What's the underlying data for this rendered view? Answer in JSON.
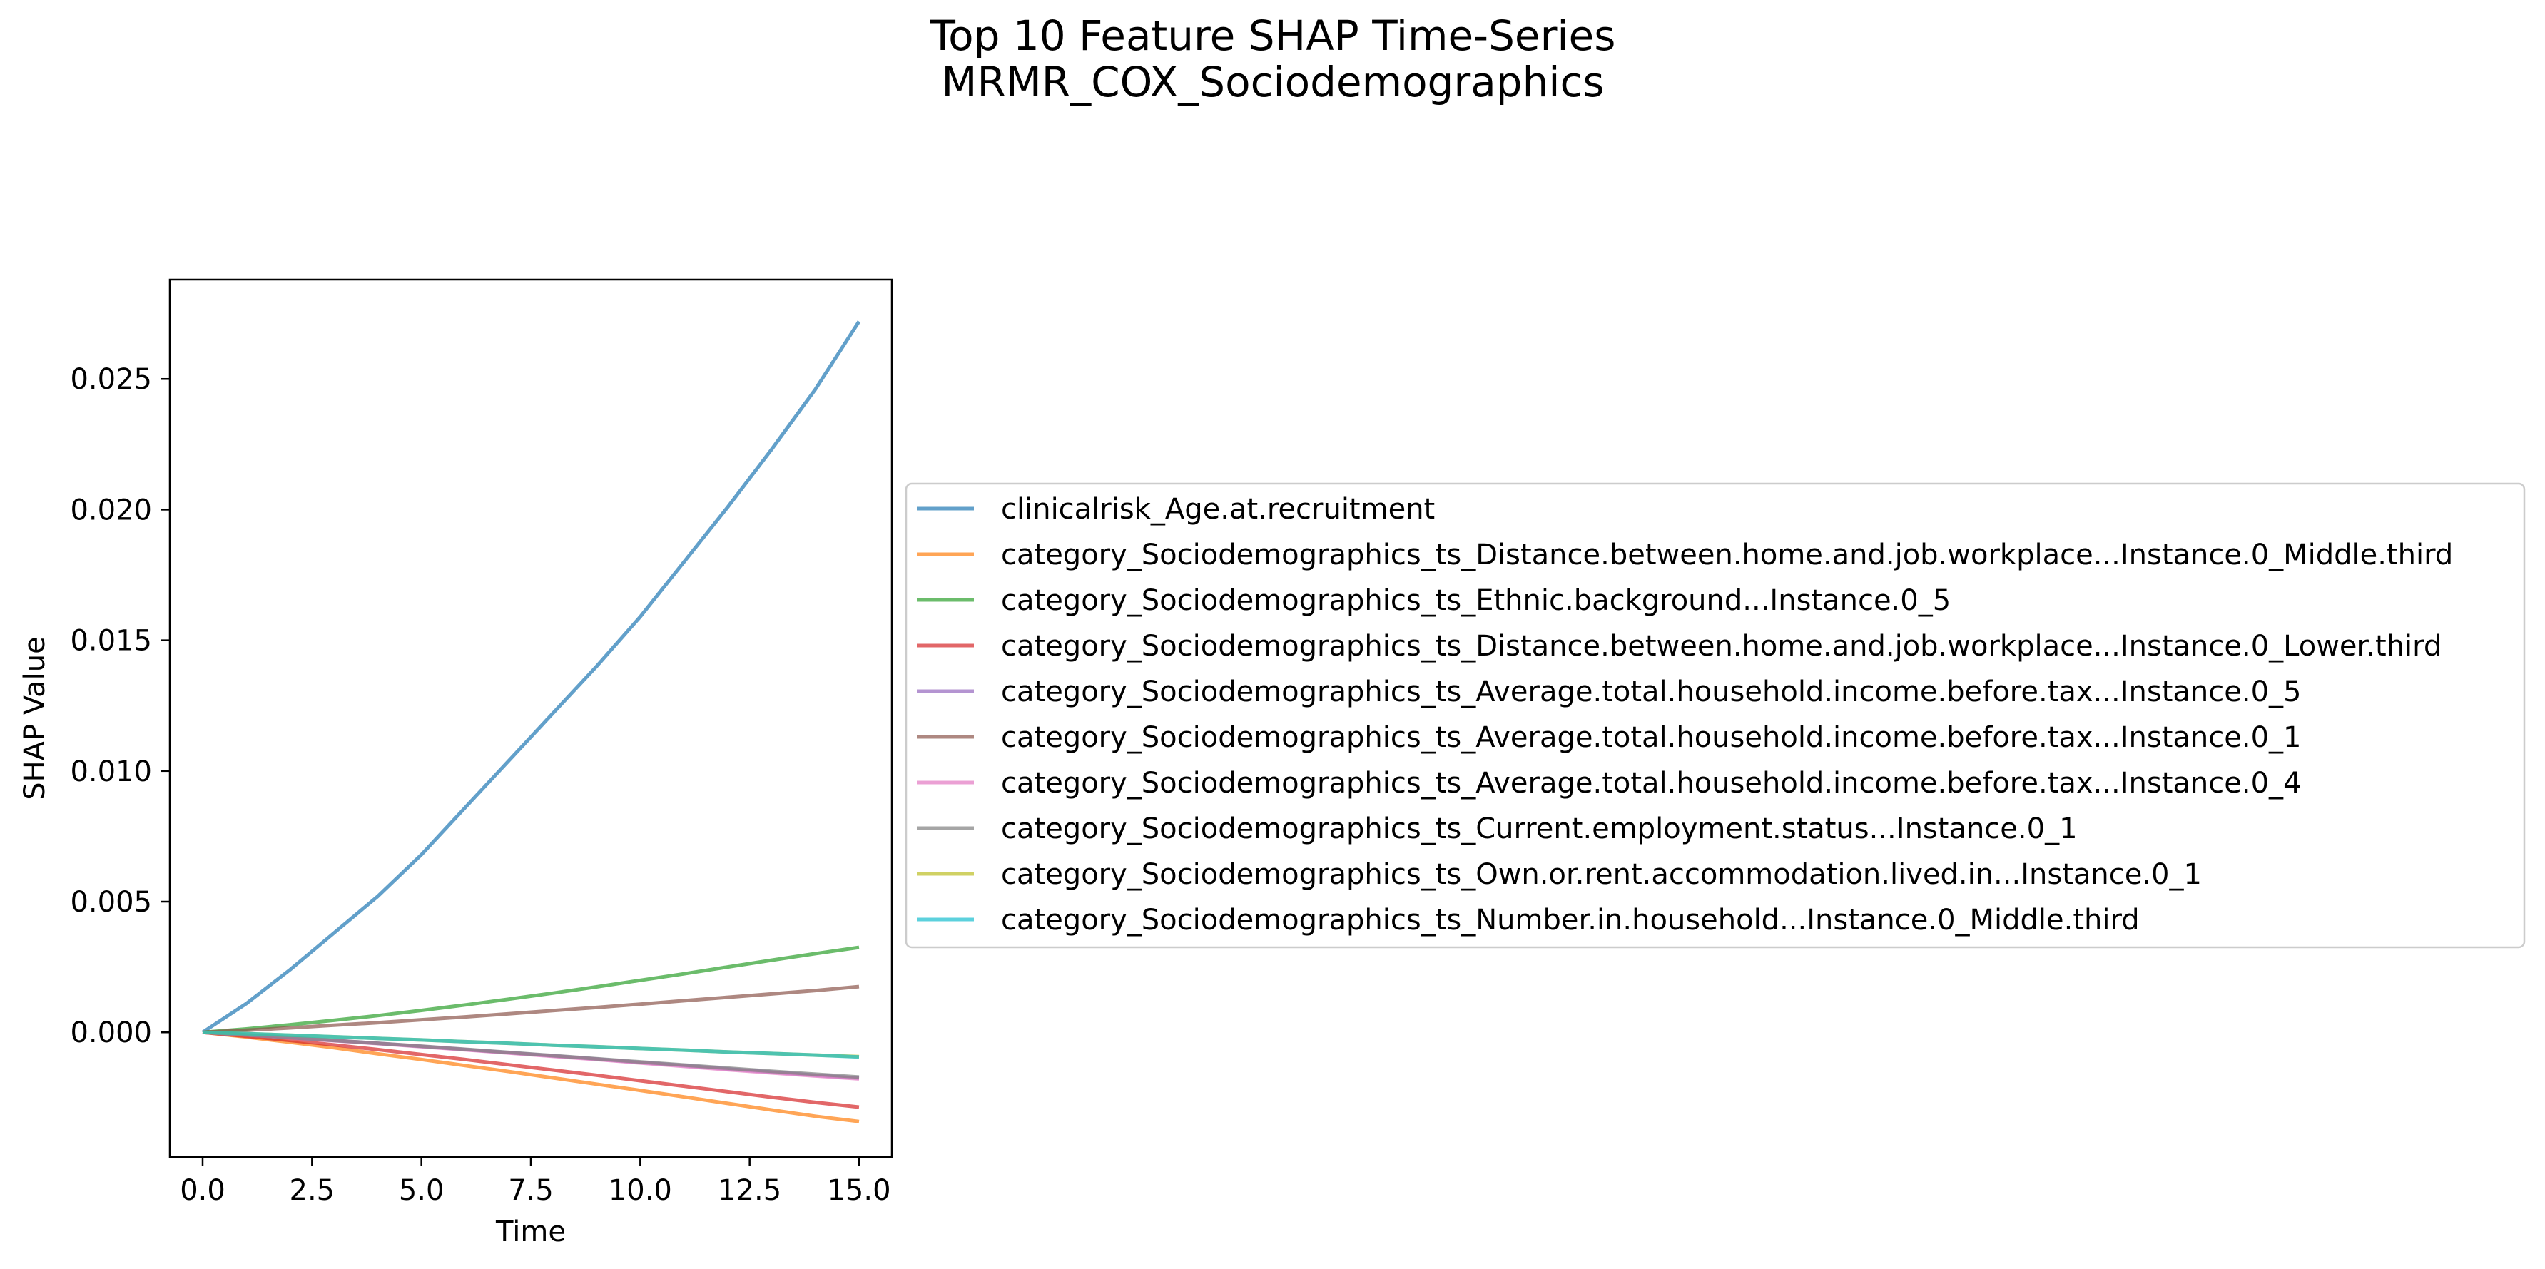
{
  "chart_data": {
    "type": "line",
    "title": "Top 10 Feature SHAP Time-Series",
    "subtitle": "MRMR_COX_Sociodemographics",
    "xlabel": "Time",
    "ylabel": "SHAP Value",
    "xlim": [
      -0.75,
      15.75
    ],
    "ylim": [
      -0.00477,
      0.0288
    ],
    "xticks": [
      "0.0",
      "2.5",
      "5.0",
      "7.5",
      "10.0",
      "12.5",
      "15.0"
    ],
    "yticks": [
      "0.000",
      "0.005",
      "0.010",
      "0.015",
      "0.020",
      "0.025"
    ],
    "grid": false,
    "legend_position": "center-left, outside right of axes",
    "x": [
      0,
      1,
      2,
      3,
      4,
      5,
      6,
      7,
      8,
      9,
      10,
      11,
      12,
      13,
      14,
      15
    ],
    "series": [
      {
        "name": "clinicalrisk_Age.at.recruitment",
        "color": "#1f77b4",
        "values": [
          0,
          0.0011,
          0.0024,
          0.0038,
          0.0052,
          0.0068,
          0.0086,
          0.0104,
          0.0122,
          0.014,
          0.0159,
          0.018,
          0.0201,
          0.0223,
          0.0246,
          0.0272
        ]
      },
      {
        "name": "category_Sociodemographics_ts_Distance.between.home.and.job.workplace...Instance.0_Middle.third",
        "color": "#ff7f0e",
        "values": [
          0,
          -0.00018,
          -0.00038,
          -0.00059,
          -0.00082,
          -0.00104,
          -0.00127,
          -0.0015,
          -0.00174,
          -0.00198,
          -0.00222,
          -0.00247,
          -0.00272,
          -0.00297,
          -0.00321,
          -0.00341
        ]
      },
      {
        "name": "category_Sociodemographics_ts_Ethnic.background...Instance.0_5",
        "color": "#2ca02c",
        "values": [
          0,
          0.00013,
          0.00029,
          0.00046,
          0.00064,
          0.00084,
          0.00105,
          0.00127,
          0.0015,
          0.00174,
          0.00199,
          0.00224,
          0.0025,
          0.00276,
          0.00301,
          0.00325
        ]
      },
      {
        "name": "category_Sociodemographics_ts_Distance.between.home.and.job.workplace...Instance.0_Lower.third",
        "color": "#d62728",
        "values": [
          0,
          -0.00015,
          -0.00031,
          -0.00048,
          -0.00066,
          -0.00085,
          -0.00104,
          -0.00124,
          -0.00144,
          -0.00164,
          -0.00185,
          -0.00206,
          -0.00227,
          -0.00248,
          -0.00268,
          -0.00286
        ]
      },
      {
        "name": "category_Sociodemographics_ts_Average.total.household.income.before.tax...Instance.0_5",
        "color": "#9467bd",
        "values": [
          0,
          -0.0001,
          -0.0002,
          -0.00031,
          -0.00042,
          -0.00054,
          -0.00066,
          -0.00078,
          -0.0009,
          -0.00102,
          -0.00115,
          -0.00127,
          -0.0014,
          -0.00152,
          -0.00164,
          -0.00175
        ]
      },
      {
        "name": "category_Sociodemographics_ts_Average.total.household.income.before.tax...Instance.0_1",
        "color": "#8c564b",
        "values": [
          0,
          8e-05,
          0.00017,
          0.00027,
          0.00037,
          0.00048,
          0.00059,
          0.00071,
          0.00083,
          0.00095,
          0.00108,
          0.00121,
          0.00134,
          0.00147,
          0.0016,
          0.00175
        ]
      },
      {
        "name": "category_Sociodemographics_ts_Average.total.household.income.before.tax...Instance.0_4",
        "color": "#e377c2",
        "values": [
          0,
          -0.0001,
          -0.00021,
          -0.00032,
          -0.00043,
          -0.00055,
          -0.00067,
          -0.00079,
          -0.00092,
          -0.00104,
          -0.00117,
          -0.0013,
          -0.00143,
          -0.00155,
          -0.00167,
          -0.00178
        ]
      },
      {
        "name": "category_Sociodemographics_ts_Current.employment.status...Instance.0_1",
        "color": "#7f7f7f",
        "values": [
          0,
          -0.0001,
          -0.0002,
          -0.00031,
          -0.00042,
          -0.00053,
          -0.00065,
          -0.00077,
          -0.00089,
          -0.00101,
          -0.00113,
          -0.00125,
          -0.00137,
          -0.00149,
          -0.0016,
          -0.00171
        ]
      },
      {
        "name": "category_Sociodemographics_ts_Own.or.rent.accommodation.lived.in...Instance.0_1",
        "color": "#bcbd22",
        "values": [
          0,
          -5e-05,
          -0.00011,
          -0.00017,
          -0.00023,
          -0.00029,
          -0.00036,
          -0.00042,
          -0.00049,
          -0.00055,
          -0.00062,
          -0.00068,
          -0.00075,
          -0.00081,
          -0.00087,
          -0.00093
        ]
      },
      {
        "name": "category_Sociodemographics_ts_Number.in.household...Instance.0_Middle.third",
        "color": "#17becf",
        "values": [
          0,
          -5e-05,
          -0.00011,
          -0.00017,
          -0.00023,
          -0.00029,
          -0.00036,
          -0.00042,
          -0.00049,
          -0.00055,
          -0.00062,
          -0.00068,
          -0.00075,
          -0.00081,
          -0.00087,
          -0.00094
        ]
      }
    ]
  }
}
